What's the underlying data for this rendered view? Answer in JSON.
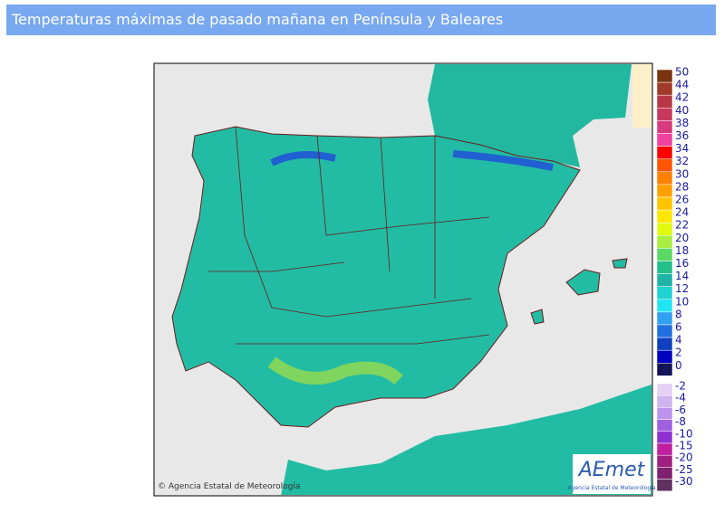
{
  "header": {
    "title": "Temperaturas máximas de pasado mañana en Península y Baleares"
  },
  "map": {
    "credit": "© Agencia Estatal de Meteorología",
    "logo": "AEmet",
    "logo_caption": "Agencia Estatal de Meteorología"
  },
  "legend": {
    "upper": [
      {
        "label": "50",
        "color": "#7a3412"
      },
      {
        "label": "44",
        "color": "#a23a2a"
      },
      {
        "label": "42",
        "color": "#b83848"
      },
      {
        "label": "40",
        "color": "#c8385e"
      },
      {
        "label": "38",
        "color": "#d83a7e"
      },
      {
        "label": "36",
        "color": "#f040a0"
      },
      {
        "label": "34",
        "color": "#ff0000"
      },
      {
        "label": "32",
        "color": "#ff5500"
      },
      {
        "label": "30",
        "color": "#ff8000"
      },
      {
        "label": "28",
        "color": "#ffa000"
      },
      {
        "label": "26",
        "color": "#ffc400"
      },
      {
        "label": "24",
        "color": "#ffe600"
      },
      {
        "label": "22",
        "color": "#e0fa10"
      },
      {
        "label": "20",
        "color": "#a8ee40"
      },
      {
        "label": "18",
        "color": "#5ada64"
      },
      {
        "label": "16",
        "color": "#22c08a"
      },
      {
        "label": "14",
        "color": "#20b4a6"
      },
      {
        "label": "12",
        "color": "#20d2d2"
      },
      {
        "label": "10",
        "color": "#20e6f4"
      },
      {
        "label": "8",
        "color": "#30a0f0"
      },
      {
        "label": "6",
        "color": "#2070e0"
      },
      {
        "label": "4",
        "color": "#1040c0"
      },
      {
        "label": "2",
        "color": "#0000c0"
      },
      {
        "label": "0",
        "color": "#141458"
      }
    ],
    "lower": [
      {
        "label": "-2",
        "color": "#e4d0f4"
      },
      {
        "label": "-4",
        "color": "#d0b4f0"
      },
      {
        "label": "-6",
        "color": "#bc94ee"
      },
      {
        "label": "-8",
        "color": "#a060e0"
      },
      {
        "label": "-10",
        "color": "#9030d0"
      },
      {
        "label": "-15",
        "color": "#c020a0"
      },
      {
        "label": "-20",
        "color": "#a02080"
      },
      {
        "label": "-25",
        "color": "#802070"
      },
      {
        "label": "-30",
        "color": "#603060"
      }
    ]
  }
}
